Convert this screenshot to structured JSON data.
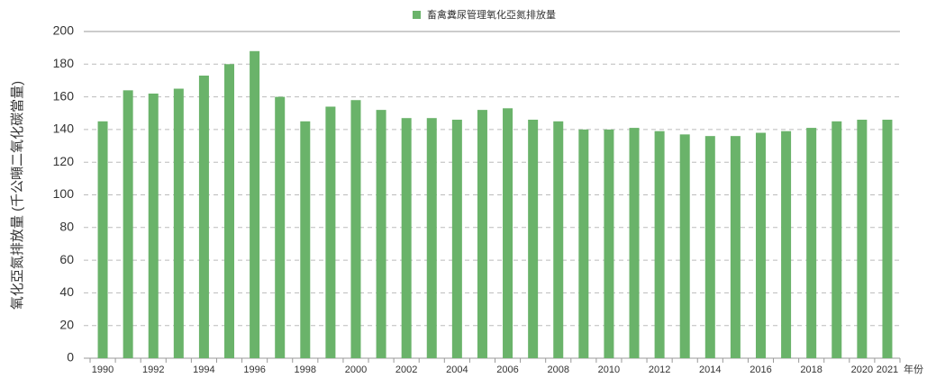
{
  "chart_data": {
    "type": "bar",
    "legend_label": "畜禽糞尿管理氧化亞氮排放量",
    "y_label": "氧化亞氮排放量 (千公噸二氧化碳當量)",
    "x_label": "年份",
    "categories": [
      "1990",
      null,
      "1992",
      null,
      "1994",
      null,
      "1996",
      null,
      "1998",
      null,
      "2000",
      null,
      "2002",
      null,
      "2004",
      null,
      "2006",
      null,
      "2008",
      null,
      "2010",
      null,
      "2012",
      null,
      "2014",
      null,
      "2016",
      null,
      "2018",
      null,
      "2020",
      "2021"
    ],
    "values": [
      145,
      164,
      162,
      165,
      173,
      180,
      188,
      160,
      145,
      154,
      158,
      152,
      147,
      147,
      146,
      152,
      153,
      146,
      145,
      140,
      140,
      141,
      139,
      137,
      136,
      136,
      138,
      139,
      141,
      145,
      146,
      146
    ],
    "color": "#6ab36a",
    "ylim": [
      0,
      200
    ],
    "yticks": [
      0,
      20,
      40,
      60,
      80,
      100,
      120,
      140,
      160,
      180,
      200
    ],
    "grid": true
  }
}
